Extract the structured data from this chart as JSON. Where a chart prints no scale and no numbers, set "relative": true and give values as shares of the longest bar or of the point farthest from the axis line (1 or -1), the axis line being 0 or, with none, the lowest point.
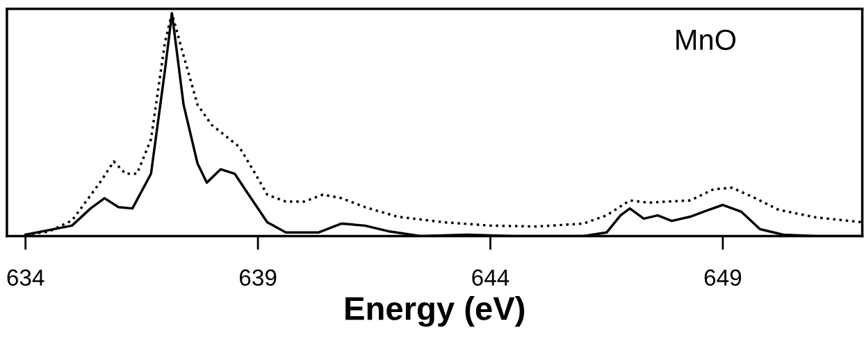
{
  "chart_data": {
    "type": "line",
    "relative": true,
    "xlabel": "Energy (eV)",
    "annotations": [
      "MnO"
    ],
    "xlim": [
      633.6,
      652
    ],
    "xticks": [
      634,
      639,
      644,
      649
    ],
    "grid": false,
    "legend": false,
    "marker": "none",
    "series": [
      {
        "color": "#000000",
        "line_style": "dotted",
        "x": [
          634,
          634.5,
          635,
          635.3,
          635.6,
          635.9,
          636.15,
          636.4,
          636.7,
          637,
          637.15,
          637.4,
          637.7,
          638,
          638.3,
          638.6,
          638.9,
          639.2,
          639.6,
          640,
          640.4,
          640.8,
          641.3,
          642,
          643,
          644,
          645,
          646,
          646.5,
          647,
          647.4,
          647.8,
          648.3,
          648.8,
          649.2,
          649.7,
          650.2,
          651,
          652
        ],
        "values": [
          0.006,
          0.02,
          0.07,
          0.155,
          0.24,
          0.335,
          0.28,
          0.28,
          0.435,
          0.87,
          1.0,
          0.81,
          0.59,
          0.5,
          0.45,
          0.4,
          0.295,
          0.186,
          0.155,
          0.155,
          0.186,
          0.17,
          0.13,
          0.087,
          0.062,
          0.047,
          0.043,
          0.056,
          0.093,
          0.16,
          0.15,
          0.155,
          0.16,
          0.21,
          0.217,
          0.17,
          0.118,
          0.084,
          0.062
        ]
      },
      {
        "color": "#000000",
        "line_style": "solid",
        "x": [
          634,
          635,
          635.4,
          635.7,
          636,
          636.3,
          636.7,
          637,
          637.15,
          637.4,
          637.7,
          637.9,
          638.2,
          638.5,
          638.8,
          639.2,
          639.6,
          640.3,
          640.8,
          641.3,
          641.8,
          642.5,
          643.5,
          644.5,
          646,
          646.5,
          646.8,
          647,
          647.3,
          647.6,
          647.9,
          648.3,
          648.7,
          649,
          649.4,
          649.8,
          650.3,
          651,
          652
        ],
        "values": [
          0.006,
          0.047,
          0.124,
          0.17,
          0.13,
          0.124,
          0.28,
          0.745,
          1.0,
          0.59,
          0.326,
          0.24,
          0.3,
          0.28,
          0.186,
          0.062,
          0.016,
          0.016,
          0.056,
          0.047,
          0.022,
          0,
          0.006,
          0,
          0,
          0.016,
          0.093,
          0.124,
          0.078,
          0.093,
          0.068,
          0.087,
          0.118,
          0.14,
          0.109,
          0.031,
          0.006,
          0,
          0
        ]
      }
    ]
  }
}
